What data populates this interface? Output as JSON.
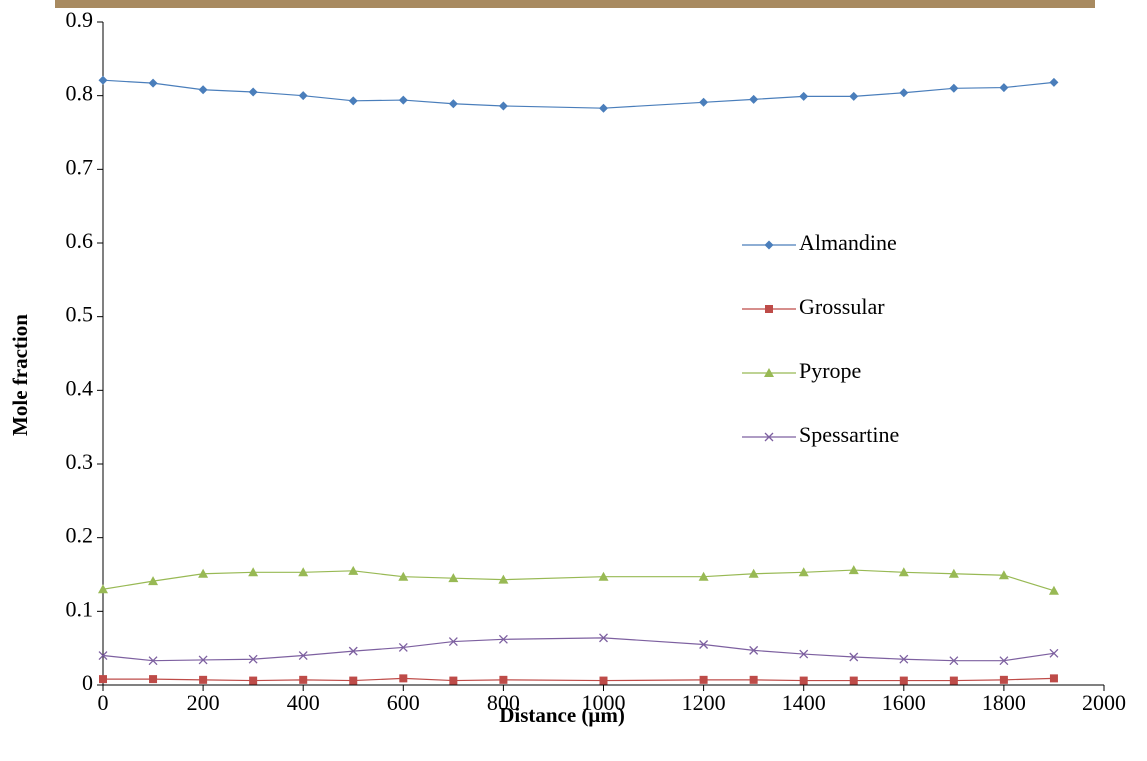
{
  "chart_data": {
    "type": "line",
    "x_label": "Distance (μm)",
    "y_label": "Mole fraction",
    "x": [
      0,
      100,
      200,
      300,
      400,
      500,
      600,
      700,
      800,
      1000,
      1200,
      1300,
      1400,
      1500,
      1600,
      1700,
      1800,
      1900
    ],
    "series": [
      {
        "name": "Almandine",
        "color": "#4a7ebb",
        "marker": "diamond",
        "values": [
          0.821,
          0.817,
          0.808,
          0.805,
          0.8,
          0.793,
          0.794,
          0.789,
          0.786,
          0.783,
          0.791,
          0.795,
          0.799,
          0.799,
          0.804,
          0.81,
          0.811,
          0.818
        ]
      },
      {
        "name": "Grossular",
        "color": "#be4b48",
        "marker": "square",
        "values": [
          0.008,
          0.008,
          0.007,
          0.006,
          0.007,
          0.006,
          0.009,
          0.006,
          0.007,
          0.006,
          0.007,
          0.007,
          0.006,
          0.006,
          0.006,
          0.006,
          0.007,
          0.009
        ]
      },
      {
        "name": "Pyrope",
        "color": "#98b954",
        "marker": "triangle",
        "values": [
          0.13,
          0.141,
          0.151,
          0.153,
          0.153,
          0.155,
          0.147,
          0.145,
          0.143,
          0.147,
          0.147,
          0.151,
          0.153,
          0.156,
          0.153,
          0.151,
          0.149,
          0.128
        ]
      },
      {
        "name": "Spessartine",
        "color": "#7d60a0",
        "marker": "x",
        "values": [
          0.04,
          0.033,
          0.034,
          0.035,
          0.04,
          0.046,
          0.051,
          0.059,
          0.062,
          0.064,
          0.055,
          0.047,
          0.042,
          0.038,
          0.035,
          0.033,
          0.033,
          0.043
        ]
      }
    ],
    "xlim": [
      0,
      2000
    ],
    "xticks": [
      0,
      200,
      400,
      600,
      800,
      1000,
      1200,
      1400,
      1600,
      1800,
      2000
    ],
    "ylim": [
      0,
      0.9
    ],
    "yticks": [
      {
        "value": 0,
        "label": "0"
      },
      0.1,
      0.2,
      0.3,
      0.4,
      0.5,
      0.6,
      0.7,
      0.8,
      0.9
    ],
    "grid": false,
    "legend": "right"
  }
}
